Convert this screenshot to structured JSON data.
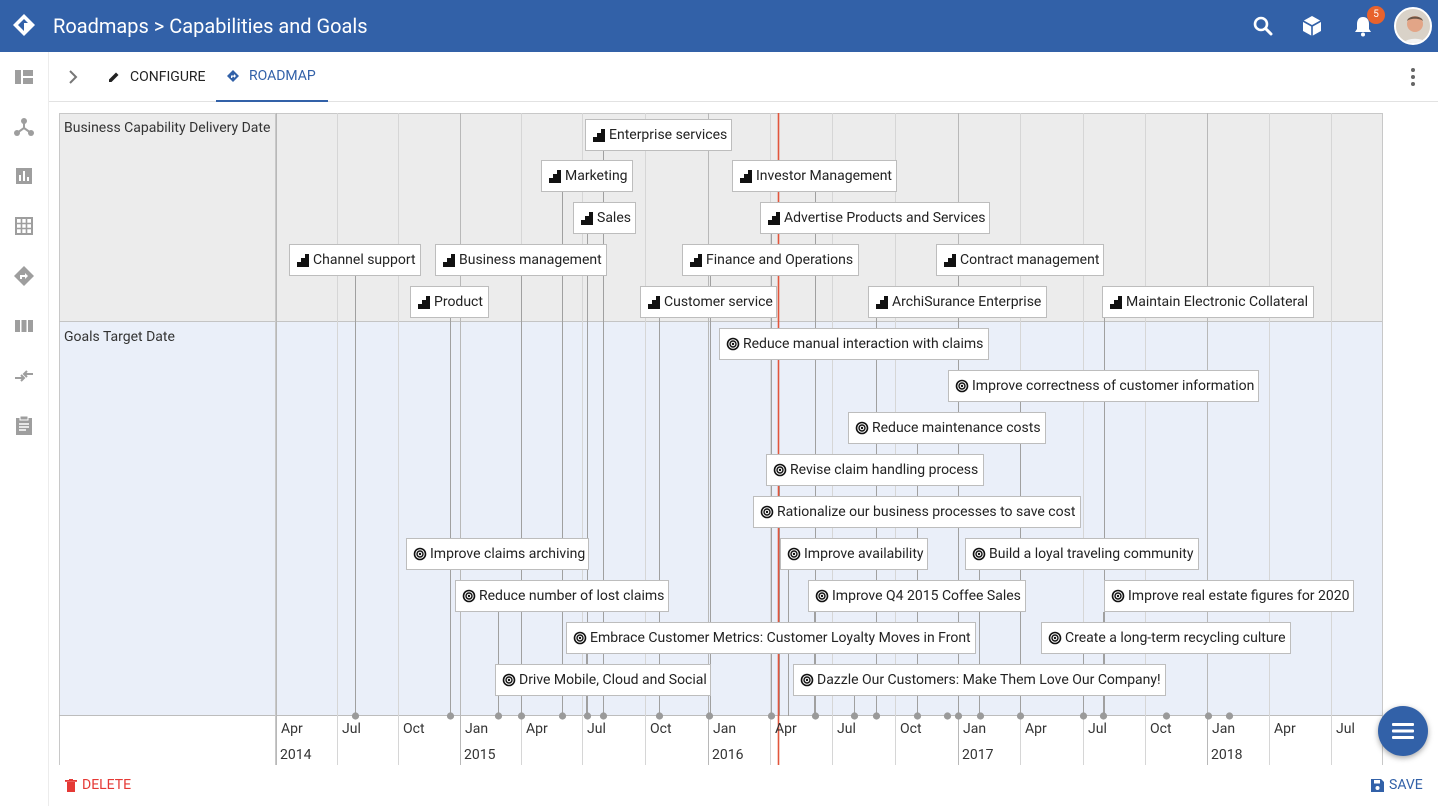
{
  "header": {
    "title": "Roadmaps > Capabilities and Goals",
    "notification_count": "5",
    "brand_color": "#3261a8"
  },
  "rail": {
    "icons": [
      "dashboard-icon",
      "network-icon",
      "chart-icon",
      "grid-icon",
      "directions-icon",
      "columns-icon",
      "compare-icon",
      "clipboard-icon"
    ]
  },
  "tabs": {
    "configure": "CONFIGURE",
    "roadmap": "ROADMAP"
  },
  "lanes": {
    "capabilities": "Business Capability Delivery Date",
    "goals": "Goals Target Date"
  },
  "timeline": {
    "months": [
      "Apr",
      "Jul",
      "Oct",
      "Jan",
      "Apr",
      "Jul",
      "Oct",
      "Jan",
      "Apr",
      "Jul",
      "Oct",
      "Jan",
      "Apr",
      "Jul",
      "Oct",
      "Jan",
      "Apr",
      "Jul"
    ],
    "years": [
      "2014",
      "2015",
      "2016",
      "2017",
      "2018"
    ]
  },
  "capabilities": [
    {
      "label": "Enterprise services",
      "icon": "capability-icon"
    },
    {
      "label": "Marketing",
      "icon": "capability-icon"
    },
    {
      "label": "Investor Management",
      "icon": "capability-icon"
    },
    {
      "label": "Sales",
      "icon": "capability-icon"
    },
    {
      "label": "Advertise Products and Services",
      "icon": "capability-icon"
    },
    {
      "label": "Channel support",
      "icon": "capability-icon"
    },
    {
      "label": "Business management",
      "icon": "capability-icon"
    },
    {
      "label": "Finance and Operations",
      "icon": "capability-icon"
    },
    {
      "label": "Contract management",
      "icon": "capability-icon"
    },
    {
      "label": "Product",
      "icon": "capability-icon"
    },
    {
      "label": "Customer service",
      "icon": "capability-icon"
    },
    {
      "label": "ArchiSurance Enterprise",
      "icon": "capability-icon"
    },
    {
      "label": "Maintain Electronic Collateral",
      "icon": "capability-icon"
    }
  ],
  "goals": [
    {
      "label": "Reduce manual interaction with claims",
      "icon": "goal-icon"
    },
    {
      "label": "Improve correctness of customer information",
      "icon": "goal-icon"
    },
    {
      "label": "Reduce maintenance costs",
      "icon": "goal-icon"
    },
    {
      "label": "Revise claim handling process",
      "icon": "goal-icon"
    },
    {
      "label": "Rationalize our business processes to save cost",
      "icon": "goal-icon"
    },
    {
      "label": "Improve claims archiving",
      "icon": "goal-icon"
    },
    {
      "label": "Improve availability",
      "icon": "goal-icon"
    },
    {
      "label": "Build a loyal traveling community",
      "icon": "goal-icon"
    },
    {
      "label": "Reduce number of lost claims",
      "icon": "goal-icon"
    },
    {
      "label": "Improve Q4 2015 Coffee Sales",
      "icon": "goal-icon"
    },
    {
      "label": "Improve real estate figures for 2020",
      "icon": "goal-icon"
    },
    {
      "label": "Embrace Customer Metrics: Customer Loyalty Moves in Front",
      "icon": "goal-icon"
    },
    {
      "label": "Create a long-term recycling culture",
      "icon": "goal-icon"
    },
    {
      "label": "Drive Mobile, Cloud and Social",
      "icon": "goal-icon"
    },
    {
      "label": "Dazzle Our Customers: Make Them Love Our Company!",
      "icon": "goal-icon"
    }
  ],
  "footer": {
    "delete_label": "DELETE",
    "save_label": "SAVE"
  }
}
